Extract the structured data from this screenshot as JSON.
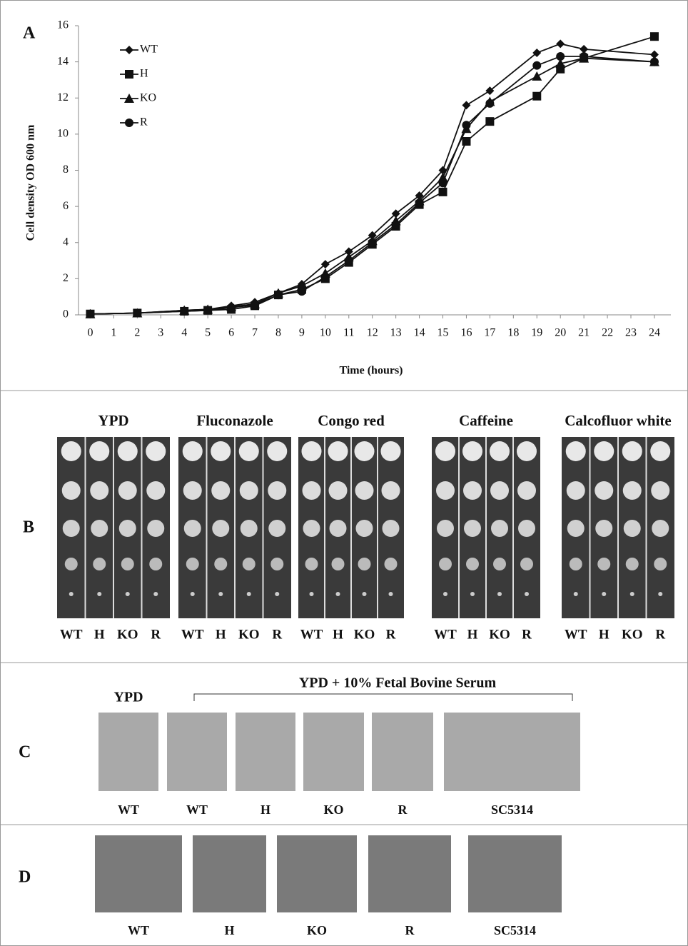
{
  "chart_data": {
    "type": "line",
    "panel_label": "A",
    "y_label": "Cell density OD 600 nm",
    "x_label": "Time (hours)",
    "x": [
      0,
      2,
      4,
      5,
      6,
      7,
      8,
      9,
      10,
      11,
      12,
      13,
      14,
      15,
      16,
      17,
      19,
      20,
      21,
      24
    ],
    "xlim": [
      -0.5,
      24.7
    ],
    "xticks": [
      0,
      1,
      2,
      3,
      4,
      5,
      6,
      7,
      8,
      9,
      10,
      11,
      12,
      13,
      14,
      15,
      16,
      17,
      18,
      19,
      20,
      21,
      22,
      23,
      24
    ],
    "ylim": [
      0,
      16
    ],
    "yticks": [
      0,
      2,
      4,
      6,
      8,
      10,
      12,
      14,
      16
    ],
    "legend": "upper-left",
    "series": [
      {
        "name": "WT",
        "color": "#111111",
        "marker": "diamond",
        "values": [
          0.05,
          0.1,
          0.25,
          0.3,
          0.5,
          0.7,
          1.2,
          1.7,
          2.8,
          3.5,
          4.4,
          5.6,
          6.6,
          8.0,
          11.6,
          12.4,
          14.5,
          15.0,
          14.7,
          14.4
        ]
      },
      {
        "name": "H",
        "color": "#111111",
        "marker": "square",
        "values": [
          0.05,
          0.1,
          0.2,
          0.25,
          0.3,
          0.5,
          1.1,
          1.4,
          2.0,
          2.9,
          3.9,
          4.9,
          6.1,
          6.8,
          9.6,
          10.7,
          12.1,
          13.6,
          14.2,
          15.4
        ]
      },
      {
        "name": "KO",
        "color": "#111111",
        "marker": "triangle",
        "values": [
          0.05,
          0.1,
          0.25,
          0.3,
          0.45,
          0.6,
          1.2,
          1.6,
          2.3,
          3.2,
          4.1,
          5.2,
          6.3,
          7.6,
          10.3,
          11.8,
          13.2,
          13.9,
          14.2,
          14.0
        ]
      },
      {
        "name": "R",
        "color": "#111111",
        "marker": "circle",
        "values": [
          0.05,
          0.1,
          0.2,
          0.25,
          0.4,
          0.55,
          1.1,
          1.3,
          2.1,
          3.0,
          4.0,
          5.0,
          6.2,
          7.3,
          10.5,
          11.7,
          13.8,
          14.3,
          14.3,
          14.0
        ]
      }
    ]
  },
  "panels": {
    "B": {
      "label": "B",
      "conditions": [
        {
          "title": "YPD",
          "strains": [
            "WT",
            "H",
            "KO",
            "R"
          ]
        },
        {
          "title": "Fluconazole",
          "strains": [
            "WT",
            "H",
            "KO",
            "R"
          ]
        },
        {
          "title": "Congo red",
          "strains": [
            "WT",
            "H",
            "KO",
            "R"
          ]
        },
        {
          "title": "Caffeine",
          "strains": [
            "WT",
            "H",
            "KO",
            "R"
          ]
        },
        {
          "title": "Calcofluor white",
          "strains": [
            "WT",
            "H",
            "KO",
            "R"
          ]
        }
      ]
    },
    "C": {
      "label": "C",
      "control_title": "YPD",
      "serum_title": "YPD + 10% Fetal Bovine Serum",
      "strains": [
        "WT",
        "WT",
        "H",
        "KO",
        "R",
        "SC5314"
      ]
    },
    "D": {
      "label": "D",
      "strains": [
        "WT",
        "H",
        "KO",
        "R",
        "SC5314"
      ]
    }
  }
}
